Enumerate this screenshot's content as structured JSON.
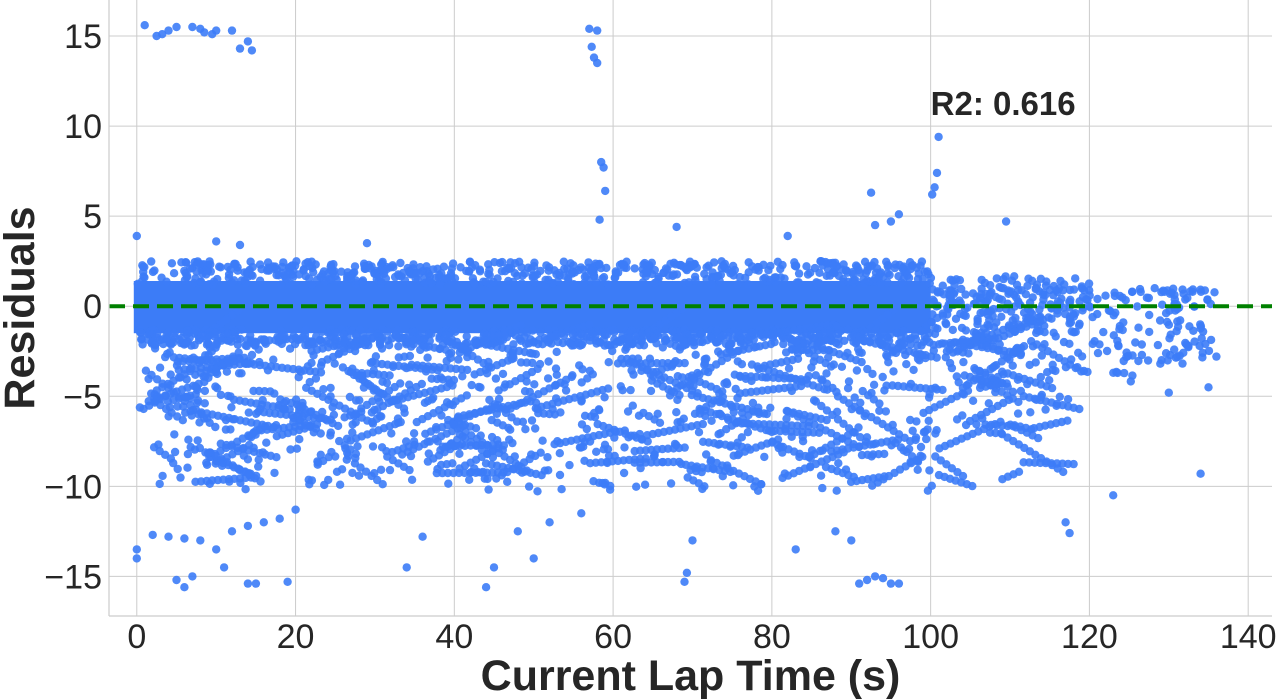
{
  "chart_data": {
    "type": "scatter",
    "title": "",
    "xlabel": "Current Lap Time (s)",
    "ylabel": "Residuals",
    "xlim": [
      -3.5,
      143
    ],
    "ylim": [
      -17.2,
      17
    ],
    "xticks": [
      0,
      20,
      40,
      60,
      80,
      100,
      120,
      140
    ],
    "xtick_labels": [
      "0",
      "20",
      "40",
      "60",
      "80",
      "100",
      "120",
      "140"
    ],
    "yticks": [
      15,
      10,
      5,
      0,
      -5,
      -10,
      -15
    ],
    "ytick_labels": [
      "15",
      "10",
      "5",
      "0",
      "−5",
      "−10",
      "−15"
    ],
    "grid": true,
    "legend": "none",
    "series_color": "#3c7cf7",
    "reference_line": {
      "y": 0,
      "style": "dashed",
      "color": "#008000"
    },
    "annotation": {
      "text": "R2: 0.616",
      "x": 100,
      "y": 10.5
    },
    "bands": [
      {
        "x": [
          0,
          100
        ],
        "y": [
          -1.8,
          2.0
        ],
        "density": "dense"
      },
      {
        "x": [
          0,
          120
        ],
        "y": [
          -10,
          -1.5
        ],
        "density": "medium"
      },
      {
        "x": [
          100,
          136
        ],
        "y": [
          -8,
          1
        ],
        "density": "sparse"
      }
    ],
    "outliers": [
      [
        1.0,
        15.6
      ],
      [
        2.5,
        15.0
      ],
      [
        3.2,
        15.1
      ],
      [
        4.0,
        15.3
      ],
      [
        5.0,
        15.5
      ],
      [
        7.0,
        15.5
      ],
      [
        8.0,
        15.4
      ],
      [
        8.5,
        15.2
      ],
      [
        9.5,
        15.1
      ],
      [
        10.0,
        15.3
      ],
      [
        12.0,
        15.3
      ],
      [
        13.0,
        14.3
      ],
      [
        14.0,
        14.7
      ],
      [
        14.5,
        14.2
      ],
      [
        57.0,
        15.4
      ],
      [
        57.3,
        14.4
      ],
      [
        57.6,
        13.8
      ],
      [
        58.0,
        15.3
      ],
      [
        58.0,
        13.5
      ],
      [
        58.5,
        8.0
      ],
      [
        58.8,
        7.7
      ],
      [
        59.0,
        6.4
      ],
      [
        58.3,
        4.8
      ],
      [
        101.0,
        9.4
      ],
      [
        100.8,
        7.4
      ],
      [
        100.5,
        6.6
      ],
      [
        100.2,
        6.2
      ],
      [
        92.5,
        6.3
      ],
      [
        109.5,
        4.7
      ],
      [
        93.0,
        4.5
      ],
      [
        95.0,
        4.7
      ],
      [
        96.0,
        5.1
      ],
      [
        0.0,
        3.9
      ],
      [
        10.0,
        3.6
      ],
      [
        13.0,
        3.4
      ],
      [
        29.0,
        3.5
      ],
      [
        68.0,
        4.4
      ],
      [
        82.0,
        3.9
      ],
      [
        5.0,
        -15.2
      ],
      [
        6.0,
        -15.6
      ],
      [
        7.0,
        -15.0
      ],
      [
        14.0,
        -15.4
      ],
      [
        15.0,
        -15.4
      ],
      [
        19.0,
        -15.3
      ],
      [
        44.0,
        -15.6
      ],
      [
        69.0,
        -15.3
      ],
      [
        69.3,
        -14.8
      ],
      [
        91.0,
        -15.4
      ],
      [
        92.0,
        -15.2
      ],
      [
        93.0,
        -15.0
      ],
      [
        94.0,
        -15.1
      ],
      [
        95.0,
        -15.4
      ],
      [
        96.0,
        -15.4
      ],
      [
        0.0,
        -13.5
      ],
      [
        0.0,
        -14.0
      ],
      [
        2.0,
        -12.7
      ],
      [
        4.0,
        -12.8
      ],
      [
        6.0,
        -12.9
      ],
      [
        8.0,
        -13.0
      ],
      [
        10.0,
        -13.5
      ],
      [
        11.0,
        -14.5
      ],
      [
        12.0,
        -12.5
      ],
      [
        14.0,
        -12.2
      ],
      [
        16.0,
        -12.0
      ],
      [
        18.0,
        -11.8
      ],
      [
        20.0,
        -11.3
      ],
      [
        34.0,
        -14.5
      ],
      [
        36.0,
        -12.8
      ],
      [
        45.0,
        -14.5
      ],
      [
        48.0,
        -12.5
      ],
      [
        50.0,
        -14.0
      ],
      [
        52.0,
        -12.0
      ],
      [
        56.0,
        -11.5
      ],
      [
        70.0,
        -13.0
      ],
      [
        83.0,
        -13.5
      ],
      [
        88.0,
        -12.5
      ],
      [
        90.0,
        -13.0
      ],
      [
        117.0,
        -12.0
      ],
      [
        117.5,
        -12.6
      ],
      [
        123.0,
        -10.5
      ],
      [
        134.0,
        -9.3
      ],
      [
        130.0,
        -4.8
      ],
      [
        135.0,
        -4.5
      ],
      [
        136.0,
        -2.8
      ],
      [
        131.0,
        0.1
      ],
      [
        133.0,
        0.8
      ]
    ]
  }
}
